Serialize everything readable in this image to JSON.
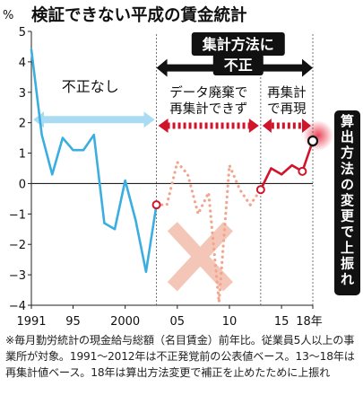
{
  "chart_data": {
    "type": "line",
    "title": "検証できない平成の賃金統計",
    "y_unit": "%",
    "ylim": [
      -4,
      5
    ],
    "y_ticks": [
      5,
      4,
      3,
      2,
      1,
      0,
      -1,
      -2,
      -3,
      -4
    ],
    "xlim": [
      1991,
      2018
    ],
    "x_ticks": [
      {
        "value": 1991,
        "label": "1991"
      },
      {
        "value": 1995,
        "label": "95"
      },
      {
        "value": 2000,
        "label": "2000"
      },
      {
        "value": 2005,
        "label": "05"
      },
      {
        "value": 2010,
        "label": "10"
      },
      {
        "value": 2015,
        "label": "15"
      },
      {
        "value": 2018,
        "label": "18年"
      }
    ],
    "series": [
      {
        "style": "solid",
        "color": "#3aaee0",
        "points": [
          [
            1991,
            4.4
          ],
          [
            1992,
            1.6
          ],
          [
            1993,
            0.3
          ],
          [
            1994,
            1.5
          ],
          [
            1995,
            1.1
          ],
          [
            1996,
            1.1
          ],
          [
            1997,
            1.6
          ],
          [
            1998,
            -1.3
          ],
          [
            1999,
            -1.5
          ],
          [
            2000,
            0.1
          ],
          [
            2001,
            -1.2
          ],
          [
            2002,
            -2.9
          ]
        ]
      },
      {
        "style": "dotted",
        "color": "#f2a58e",
        "points": [
          [
            2003,
            -0.7
          ],
          [
            2004,
            -0.7
          ],
          [
            2005,
            0.7
          ],
          [
            2006,
            0.3
          ],
          [
            2007,
            -1.0
          ],
          [
            2008,
            -0.3
          ],
          [
            2009,
            -3.9
          ],
          [
            2010,
            0.6
          ],
          [
            2011,
            -0.2
          ],
          [
            2012,
            -0.7
          ]
        ]
      },
      {
        "style": "solid",
        "color": "#d0142a",
        "points": [
          [
            2013,
            -0.2
          ],
          [
            2014,
            0.5
          ],
          [
            2015,
            0.3
          ],
          [
            2016,
            0.6
          ],
          [
            2017,
            0.4
          ],
          [
            2018,
            1.4
          ]
        ]
      }
    ],
    "markers": [
      [
        2003,
        -0.7
      ],
      [
        2013,
        -0.2
      ],
      [
        2017,
        0.4
      ],
      [
        2018,
        1.4
      ]
    ],
    "annotations": {
      "period1": "不正なし",
      "period2_line1": "データ廃棄で",
      "period2_line2": "再集計できず",
      "period3_line1": "再集計",
      "period3_line2": "で再現",
      "top_banner_line1": "集計方法に",
      "top_banner_line2": "不正",
      "side_label": "算出方法の変更で上振れ"
    },
    "footnote": "※毎月勤労統計の現金給与総額（名目賃金）前年比。従業員5人以上の事業所が対象。1991〜2012年は不正発覚前の公表値ベース。13〜18年は再集計値ベース。18年は算出方法変更で補正を止めたために上振れ"
  }
}
